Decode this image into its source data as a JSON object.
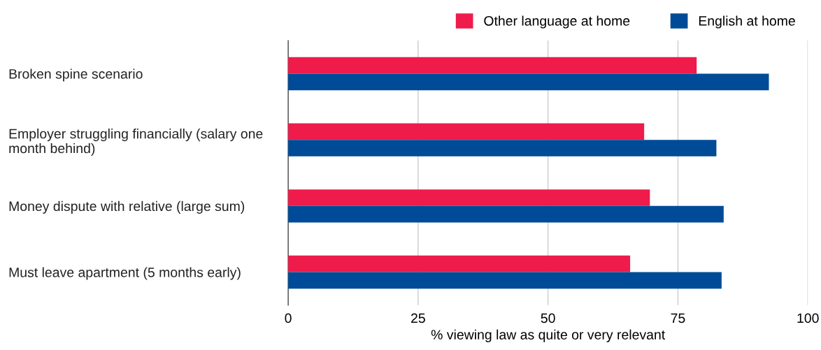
{
  "chart_data": {
    "type": "bar",
    "orientation": "horizontal",
    "xlabel": "% viewing law as quite or very relevant",
    "categories": [
      "Broken spine scenario",
      "Employer struggling financially (salary one month behind)",
      "Money dispute with relative (large sum)",
      "Must leave apartment (5 months early)"
    ],
    "series": [
      {
        "name": "Other language at home",
        "color": "#ee1b4b",
        "values": [
          78.6,
          68.5,
          69.6,
          65.8
        ]
      },
      {
        "name": "English at home",
        "color": "#004b97",
        "values": [
          92.5,
          82.4,
          83.8,
          83.4
        ]
      }
    ],
    "xlim": [
      0,
      100
    ],
    "xticks": [
      0,
      25,
      50,
      75,
      100
    ],
    "grid": "x",
    "legend": "top right"
  }
}
